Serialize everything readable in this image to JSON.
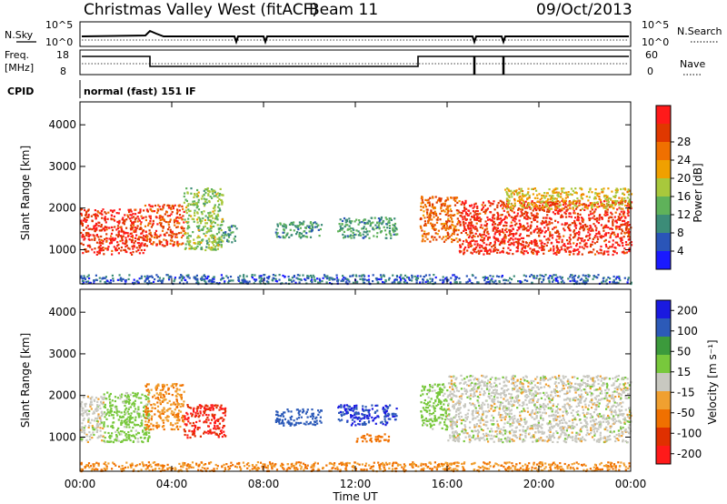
{
  "header": {
    "station": "Christmas Valley West (fitACF)",
    "beam": "Beam 11",
    "date": "09/Oct/2013"
  },
  "top_panels": {
    "nsky_label": "N.Sky",
    "nsky_ticks": [
      "10^5",
      "10^0"
    ],
    "nsearch_label": "N.Search",
    "nsearch_ticks": [
      "10^5",
      "10^0"
    ],
    "freq_label": "Freq.",
    "freq_unit": "[MHz]",
    "freq_ticks": [
      "18",
      "8"
    ],
    "nave_label": "Nave",
    "nave_ticks": [
      "60",
      "0"
    ],
    "cpid_label": "CPID",
    "cpid_value": "normal (fast) 151 IF"
  },
  "chart_data": [
    {
      "type": "heatmap",
      "name": "power",
      "ylabel": "Slant Range [km]",
      "xlabel": "",
      "x_ticks": [
        "00:00",
        "04:00",
        "08:00",
        "12:00",
        "16:00",
        "20:00",
        "00:00"
      ],
      "xlim_hours": [
        0,
        24
      ],
      "ylim": [
        180,
        4550
      ],
      "y_ticks": [
        1000,
        2000,
        3000,
        4000
      ],
      "colorbar": {
        "label": "Power [dB]",
        "ticks": [
          "4",
          "8",
          "12",
          "16",
          "20",
          "24",
          "28"
        ],
        "colors": [
          "#1a1aff",
          "#2a55b8",
          "#3c8c78",
          "#5fb25a",
          "#a8c83c",
          "#f0a000",
          "#f07000",
          "#e03800",
          "#ff1a1a"
        ]
      },
      "regions": [
        {
          "t0": 0.0,
          "t1": 2.8,
          "r0": 900,
          "r1": 2000,
          "v": 28
        },
        {
          "t0": 2.8,
          "t1": 4.5,
          "r0": 1100,
          "r1": 2100,
          "v": 26
        },
        {
          "t0": 4.5,
          "t1": 6.2,
          "r0": 1000,
          "r1": 2500,
          "v": 14
        },
        {
          "t0": 6.2,
          "t1": 6.8,
          "r0": 1200,
          "r1": 1600,
          "v": 10
        },
        {
          "t0": 8.5,
          "t1": 10.5,
          "r0": 1300,
          "r1": 1700,
          "v": 10
        },
        {
          "t0": 11.2,
          "t1": 13.8,
          "r0": 1300,
          "r1": 1800,
          "v": 10
        },
        {
          "t0": 14.8,
          "t1": 16.5,
          "r0": 1200,
          "r1": 2300,
          "v": 24
        },
        {
          "t0": 16.5,
          "t1": 24.0,
          "r0": 900,
          "r1": 2200,
          "v": 28
        },
        {
          "t0": 18.5,
          "t1": 24.0,
          "r0": 2000,
          "r1": 2500,
          "v": 18
        },
        {
          "t0": 0.0,
          "t1": 24.0,
          "r0": 200,
          "r1": 420,
          "v": 6
        }
      ]
    },
    {
      "type": "heatmap",
      "name": "velocity",
      "ylabel": "Slant Range [km]",
      "xlabel": "Time UT",
      "x_ticks": [
        "00:00",
        "04:00",
        "08:00",
        "12:00",
        "16:00",
        "20:00",
        "00:00"
      ],
      "xlim_hours": [
        0,
        24
      ],
      "ylim": [
        180,
        4550
      ],
      "y_ticks": [
        1000,
        2000,
        3000,
        4000
      ],
      "colorbar": {
        "label": "Velocity [m s⁻¹]",
        "ticks": [
          "200",
          "100",
          "50",
          "15",
          "-15",
          "-50",
          "-100",
          "-200"
        ],
        "colors": [
          "#1a1ae0",
          "#2c5ab8",
          "#3c9a3c",
          "#78c83c",
          "#c8c8c0",
          "#f0a030",
          "#f07000",
          "#e03000",
          "#ff1a1a"
        ]
      },
      "regions": [
        {
          "t0": 0.0,
          "t1": 1.0,
          "r0": 900,
          "r1": 2000,
          "v": 0
        },
        {
          "t0": 1.0,
          "t1": 3.0,
          "r0": 900,
          "r1": 2100,
          "v": 30
        },
        {
          "t0": 2.8,
          "t1": 4.5,
          "r0": 1200,
          "r1": 2300,
          "v": -50
        },
        {
          "t0": 4.5,
          "t1": 6.3,
          "r0": 1000,
          "r1": 1800,
          "v": -200
        },
        {
          "t0": 8.5,
          "t1": 10.5,
          "r0": 1300,
          "r1": 1700,
          "v": 150
        },
        {
          "t0": 11.2,
          "t1": 13.8,
          "r0": 1300,
          "r1": 1800,
          "v": 200
        },
        {
          "t0": 12.0,
          "t1": 13.5,
          "r0": 900,
          "r1": 1100,
          "v": -80
        },
        {
          "t0": 14.8,
          "t1": 16.0,
          "r0": 1200,
          "r1": 2300,
          "v": 30
        },
        {
          "t0": 16.0,
          "t1": 24.0,
          "r0": 900,
          "r1": 2500,
          "v": 0
        },
        {
          "t0": 0.0,
          "t1": 24.0,
          "r0": 200,
          "r1": 420,
          "v": -50
        }
      ]
    }
  ]
}
